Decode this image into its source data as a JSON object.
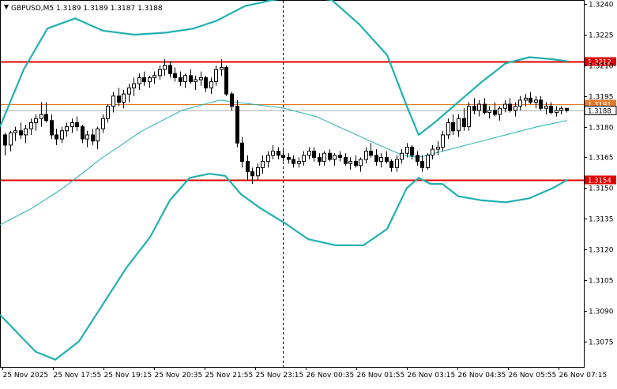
{
  "chart_data": {
    "type": "candlestick",
    "title": "GBPUSD,M5  1.3189 1.3189 1.3187 1.3188",
    "ylim": [
      1.30625,
      1.32416
    ],
    "y_ticks": [
      "1.3240",
      "1.3225",
      "1.3210",
      "1.3195",
      "1.3180",
      "1.3165",
      "1.3150",
      "1.3135",
      "1.3120",
      "1.3105",
      "1.3090",
      "1.3075"
    ],
    "x_labels": [
      "25 Nov 2025",
      "25 Nov 17:55",
      "25 Nov 19:15",
      "25 Nov 20:35",
      "25 Nov 21:55",
      "25 Nov 23:15",
      "26 Nov 00:35",
      "26 Nov 01:55",
      "26 Nov 03:15",
      "26 Nov 04:35",
      "26 Nov 05:55",
      "26 Nov 07:15"
    ],
    "levels": [
      {
        "value": 1.3212,
        "label": "1.3212",
        "color": "#e00000"
      },
      {
        "value": 1.3154,
        "label": "1.3154",
        "color": "#e00000"
      },
      {
        "value": 1.3191,
        "label": "1.3191",
        "color": "#e07b2a"
      },
      {
        "value": 1.3188,
        "label": "1.3188",
        "color": "#b0b0b0"
      }
    ],
    "series": [
      {
        "name": "",
        "role": "upper_band",
        "color": "#20b0b0",
        "values": [
          [
            0,
            1.318
          ],
          [
            30,
            1.3208
          ],
          [
            60,
            1.3228
          ],
          [
            95,
            1.3233
          ],
          [
            130,
            1.3227
          ],
          [
            170,
            1.3225
          ],
          [
            210,
            1.3226
          ],
          [
            245,
            1.3228
          ],
          [
            275,
            1.3232
          ],
          [
            310,
            1.3239
          ],
          [
            345,
            1.3242
          ],
          [
            380,
            1.3244
          ],
          [
            420,
            1.3242
          ],
          [
            455,
            1.323
          ],
          [
            490,
            1.3215
          ],
          [
            515,
            1.319
          ],
          [
            530,
            1.3176
          ],
          [
            550,
            1.3182
          ],
          [
            580,
            1.3192
          ],
          [
            610,
            1.3202
          ],
          [
            640,
            1.3211
          ],
          [
            670,
            1.3214
          ],
          [
            700,
            1.3213
          ],
          [
            718,
            1.3212
          ]
        ]
      },
      {
        "name": "",
        "role": "middle_band",
        "color": "#20b0b0",
        "values": [
          [
            0,
            1.3132
          ],
          [
            40,
            1.314
          ],
          [
            80,
            1.315
          ],
          [
            130,
            1.3165
          ],
          [
            180,
            1.3178
          ],
          [
            230,
            1.3188
          ],
          [
            278,
            1.3193
          ],
          [
            320,
            1.3191
          ],
          [
            360,
            1.3189
          ],
          [
            400,
            1.3185
          ],
          [
            440,
            1.3178
          ],
          [
            480,
            1.3171
          ],
          [
            510,
            1.3166
          ],
          [
            530,
            1.3165
          ],
          [
            560,
            1.3168
          ],
          [
            600,
            1.3172
          ],
          [
            640,
            1.3176
          ],
          [
            680,
            1.318
          ],
          [
            718,
            1.3183
          ]
        ]
      },
      {
        "name": "",
        "role": "lower_band",
        "color": "#20b0b0",
        "values": [
          [
            0,
            1.3088
          ],
          [
            20,
            1.308
          ],
          [
            45,
            1.307
          ],
          [
            70,
            1.3066
          ],
          [
            100,
            1.3075
          ],
          [
            130,
            1.3093
          ],
          [
            160,
            1.3111
          ],
          [
            190,
            1.3126
          ],
          [
            215,
            1.3144
          ],
          [
            240,
            1.3155
          ],
          [
            265,
            1.3157
          ],
          [
            285,
            1.3156
          ],
          [
            305,
            1.3147
          ],
          [
            330,
            1.314
          ],
          [
            360,
            1.3133
          ],
          [
            390,
            1.3125
          ],
          [
            425,
            1.3122
          ],
          [
            460,
            1.3122
          ],
          [
            490,
            1.313
          ],
          [
            515,
            1.315
          ],
          [
            530,
            1.3155
          ],
          [
            545,
            1.3152
          ],
          [
            560,
            1.3152
          ],
          [
            580,
            1.3146
          ],
          [
            610,
            1.3144
          ],
          [
            640,
            1.3143
          ],
          [
            670,
            1.3145
          ],
          [
            700,
            1.315
          ],
          [
            718,
            1.3154
          ]
        ]
      }
    ],
    "candles": [
      [
        1.3176,
        1.3177,
        1.3166,
        1.3171
      ],
      [
        1.3171,
        1.3178,
        1.3168,
        1.3177
      ],
      [
        1.3177,
        1.318,
        1.3173,
        1.3178
      ],
      [
        1.3178,
        1.3182,
        1.3174,
        1.3176
      ],
      [
        1.3176,
        1.3181,
        1.3172,
        1.3179
      ],
      [
        1.3179,
        1.3184,
        1.3176,
        1.3182
      ],
      [
        1.3182,
        1.3186,
        1.3178,
        1.3184
      ],
      [
        1.3184,
        1.3192,
        1.318,
        1.3186
      ],
      [
        1.3186,
        1.3192,
        1.3182,
        1.3183
      ],
      [
        1.3183,
        1.3186,
        1.3174,
        1.3176
      ],
      [
        1.3176,
        1.3179,
        1.3171,
        1.3174
      ],
      [
        1.3174,
        1.318,
        1.3172,
        1.3178
      ],
      [
        1.3178,
        1.3182,
        1.3175,
        1.318
      ],
      [
        1.318,
        1.3184,
        1.3177,
        1.3182
      ],
      [
        1.3182,
        1.3185,
        1.3178,
        1.318
      ],
      [
        1.318,
        1.3181,
        1.3172,
        1.3174
      ],
      [
        1.3174,
        1.3178,
        1.317,
        1.3176
      ],
      [
        1.3176,
        1.3179,
        1.3171,
        1.3173
      ],
      [
        1.3173,
        1.318,
        1.3169,
        1.3179
      ],
      [
        1.3179,
        1.3186,
        1.3177,
        1.3184
      ],
      [
        1.3184,
        1.3191,
        1.3182,
        1.319
      ],
      [
        1.319,
        1.3197,
        1.3187,
        1.3195
      ],
      [
        1.3195,
        1.3199,
        1.319,
        1.3192
      ],
      [
        1.3192,
        1.3198,
        1.3189,
        1.3196
      ],
      [
        1.3196,
        1.3201,
        1.3192,
        1.3199
      ],
      [
        1.3199,
        1.3204,
        1.3195,
        1.3201
      ],
      [
        1.3201,
        1.3206,
        1.3198,
        1.3204
      ],
      [
        1.3204,
        1.3207,
        1.32,
        1.3202
      ],
      [
        1.3202,
        1.3205,
        1.3199,
        1.3204
      ],
      [
        1.3204,
        1.3207,
        1.3201,
        1.3205
      ],
      [
        1.3205,
        1.321,
        1.3203,
        1.3208
      ],
      [
        1.3208,
        1.3213,
        1.3205,
        1.321
      ],
      [
        1.321,
        1.3212,
        1.3204,
        1.3206
      ],
      [
        1.3206,
        1.3209,
        1.3202,
        1.3204
      ],
      [
        1.3204,
        1.3207,
        1.32,
        1.3202
      ],
      [
        1.3202,
        1.3206,
        1.3199,
        1.3205
      ],
      [
        1.3205,
        1.3208,
        1.3201,
        1.3202
      ],
      [
        1.3202,
        1.3205,
        1.3198,
        1.3203
      ],
      [
        1.3203,
        1.3207,
        1.32,
        1.3204
      ],
      [
        1.3204,
        1.3205,
        1.3197,
        1.3199
      ],
      [
        1.3199,
        1.3204,
        1.3196,
        1.3202
      ],
      [
        1.3202,
        1.321,
        1.32,
        1.3208
      ],
      [
        1.3208,
        1.3213,
        1.3205,
        1.3209
      ],
      [
        1.3209,
        1.321,
        1.3195,
        1.3196
      ],
      [
        1.3196,
        1.3197,
        1.3188,
        1.319
      ],
      [
        1.319,
        1.3193,
        1.317,
        1.3172
      ],
      [
        1.3172,
        1.3175,
        1.316,
        1.3163
      ],
      [
        1.3163,
        1.3166,
        1.3154,
        1.3158
      ],
      [
        1.3158,
        1.316,
        1.3152,
        1.3156
      ],
      [
        1.3156,
        1.3162,
        1.3154,
        1.316
      ],
      [
        1.316,
        1.3166,
        1.3157,
        1.3163
      ],
      [
        1.3163,
        1.3168,
        1.316,
        1.3166
      ],
      [
        1.3166,
        1.3171,
        1.3164,
        1.3168
      ],
      [
        1.3168,
        1.317,
        1.3164,
        1.3166
      ],
      [
        1.3166,
        1.3169,
        1.3163,
        1.3165
      ],
      [
        1.3165,
        1.3167,
        1.3162,
        1.3164
      ],
      [
        1.3164,
        1.3166,
        1.316,
        1.3162
      ],
      [
        1.3162,
        1.3165,
        1.316,
        1.3163
      ],
      [
        1.3163,
        1.3168,
        1.3161,
        1.3166
      ],
      [
        1.3166,
        1.317,
        1.3164,
        1.3168
      ],
      [
        1.3168,
        1.317,
        1.3163,
        1.3165
      ],
      [
        1.3165,
        1.3167,
        1.3161,
        1.3163
      ],
      [
        1.3163,
        1.3168,
        1.3161,
        1.3167
      ],
      [
        1.3167,
        1.3169,
        1.3163,
        1.3164
      ],
      [
        1.3164,
        1.3167,
        1.3161,
        1.3166
      ],
      [
        1.3166,
        1.3168,
        1.3163,
        1.3165
      ],
      [
        1.3165,
        1.3167,
        1.3161,
        1.3162
      ],
      [
        1.3162,
        1.3165,
        1.3159,
        1.3163
      ],
      [
        1.3163,
        1.3166,
        1.316,
        1.3161
      ],
      [
        1.3161,
        1.3165,
        1.3158,
        1.3164
      ],
      [
        1.3164,
        1.317,
        1.3162,
        1.3168
      ],
      [
        1.3168,
        1.3172,
        1.3165,
        1.3166
      ],
      [
        1.3166,
        1.3169,
        1.3161,
        1.3163
      ],
      [
        1.3163,
        1.3167,
        1.316,
        1.3165
      ],
      [
        1.3165,
        1.3168,
        1.3162,
        1.3163
      ],
      [
        1.3163,
        1.3164,
        1.3158,
        1.316
      ],
      [
        1.316,
        1.3166,
        1.3158,
        1.3164
      ],
      [
        1.3164,
        1.3169,
        1.3162,
        1.3167
      ],
      [
        1.3167,
        1.3172,
        1.3165,
        1.317
      ],
      [
        1.317,
        1.3171,
        1.3164,
        1.3166
      ],
      [
        1.3166,
        1.3168,
        1.3161,
        1.3163
      ],
      [
        1.3163,
        1.3166,
        1.3158,
        1.316
      ],
      [
        1.316,
        1.3167,
        1.3159,
        1.3166
      ],
      [
        1.3166,
        1.3171,
        1.3164,
        1.3169
      ],
      [
        1.3169,
        1.3173,
        1.3166,
        1.317
      ],
      [
        1.317,
        1.3178,
        1.3168,
        1.3176
      ],
      [
        1.3176,
        1.3184,
        1.3174,
        1.3182
      ],
      [
        1.3182,
        1.3186,
        1.3176,
        1.3178
      ],
      [
        1.3178,
        1.3186,
        1.3175,
        1.3184
      ],
      [
        1.3184,
        1.3189,
        1.3178,
        1.318
      ],
      [
        1.318,
        1.3192,
        1.3178,
        1.319
      ],
      [
        1.319,
        1.3194,
        1.3186,
        1.3188
      ],
      [
        1.3188,
        1.3193,
        1.3185,
        1.3191
      ],
      [
        1.3191,
        1.3194,
        1.3186,
        1.3187
      ],
      [
        1.3187,
        1.319,
        1.3184,
        1.3188
      ],
      [
        1.3188,
        1.3192,
        1.3185,
        1.3186
      ],
      [
        1.3186,
        1.319,
        1.3183,
        1.3189
      ],
      [
        1.3189,
        1.3193,
        1.3187,
        1.3191
      ],
      [
        1.3191,
        1.3194,
        1.3187,
        1.3188
      ],
      [
        1.3188,
        1.3192,
        1.3185,
        1.319
      ],
      [
        1.319,
        1.3195,
        1.3188,
        1.3193
      ],
      [
        1.3193,
        1.3196,
        1.319,
        1.3194
      ],
      [
        1.3194,
        1.3197,
        1.3191,
        1.3192
      ],
      [
        1.3192,
        1.3195,
        1.3189,
        1.3193
      ],
      [
        1.3193,
        1.3195,
        1.3188,
        1.3189
      ],
      [
        1.3189,
        1.3192,
        1.3186,
        1.319
      ],
      [
        1.319,
        1.3192,
        1.3186,
        1.3187
      ],
      [
        1.3187,
        1.319,
        1.3185,
        1.3188
      ],
      [
        1.3188,
        1.319,
        1.3186,
        1.3189
      ],
      [
        1.3189,
        1.3189,
        1.3187,
        1.3188
      ]
    ]
  }
}
